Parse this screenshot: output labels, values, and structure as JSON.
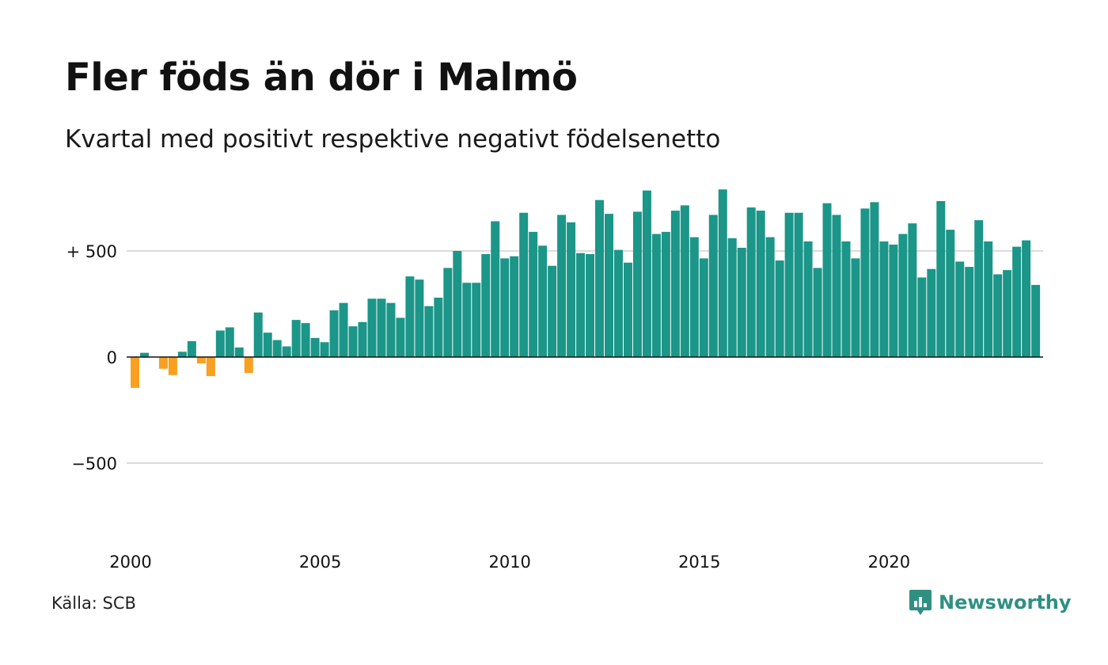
{
  "title": "Fler föds än dör i Malmö",
  "subtitle": "Kvartal med positivt respektive negativt födelsenetto",
  "source": "Källa: SCB",
  "brand": {
    "name": "Newsworthy",
    "icon": "newsworthy-logo-icon",
    "color": "#2f8f83"
  },
  "colors": {
    "positive": "#1b9688",
    "negative": "#f7a021",
    "grid": "#dcdcdc",
    "zero": "#111111"
  },
  "chart_data": {
    "type": "bar",
    "title": "Fler föds än dör i Malmö",
    "subtitle": "Kvartal med positivt respektive negativt födelsenetto",
    "x_start": "2000",
    "x_step": "quarter",
    "x_ticks": [
      {
        "value": 2000,
        "label": "2000"
      },
      {
        "value": 2005,
        "label": "2005"
      },
      {
        "value": 2010,
        "label": "2010"
      },
      {
        "value": 2015,
        "label": "2015"
      },
      {
        "value": 2020,
        "label": "2020"
      }
    ],
    "y_ticks": [
      {
        "value": 500,
        "label": "+ 500"
      },
      {
        "value": 0,
        "label": "0"
      },
      {
        "value": -500,
        "label": "−500"
      }
    ],
    "ylim": [
      -870,
      820
    ],
    "grid": true,
    "values": [
      -145,
      20,
      0,
      -55,
      -85,
      25,
      75,
      -30,
      -90,
      125,
      140,
      45,
      -75,
      210,
      115,
      80,
      50,
      175,
      160,
      90,
      70,
      220,
      255,
      145,
      165,
      275,
      275,
      255,
      185,
      380,
      365,
      240,
      280,
      420,
      500,
      350,
      350,
      485,
      640,
      465,
      475,
      680,
      590,
      525,
      430,
      670,
      635,
      490,
      485,
      740,
      675,
      505,
      445,
      685,
      785,
      580,
      590,
      690,
      715,
      565,
      465,
      670,
      790,
      560,
      515,
      705,
      690,
      565,
      455,
      680,
      680,
      545,
      420,
      725,
      670,
      545,
      465,
      700,
      730,
      545,
      530,
      580,
      630,
      375,
      415,
      735,
      600,
      450,
      425,
      645,
      545,
      390,
      410,
      520,
      550,
      340
    ]
  }
}
